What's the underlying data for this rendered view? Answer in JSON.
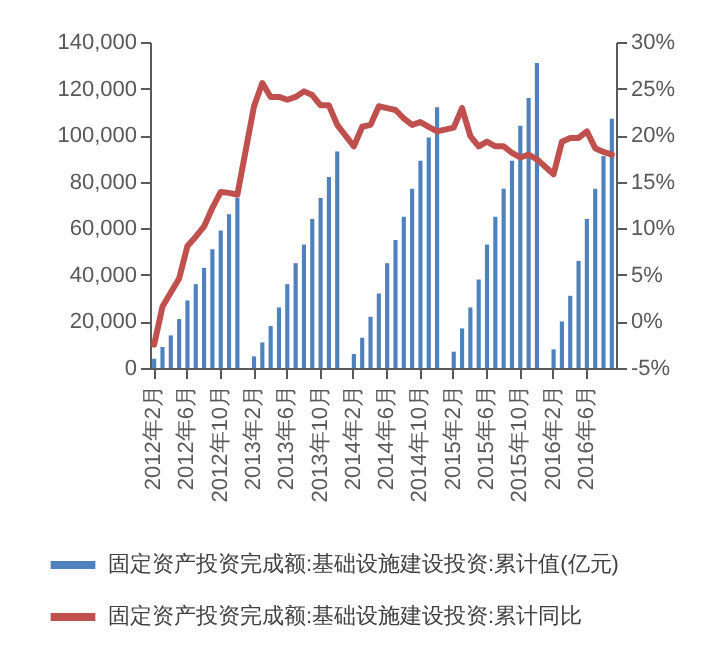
{
  "chart_data": {
    "type": "bar",
    "categories": [
      "2012年2月",
      null,
      null,
      null,
      "2012年6月",
      null,
      null,
      null,
      "2012年10月",
      null,
      null,
      null,
      "2013年2月",
      null,
      null,
      null,
      "2013年6月",
      null,
      null,
      null,
      "2013年10月",
      null,
      null,
      null,
      "2014年2月",
      null,
      null,
      null,
      "2014年6月",
      null,
      null,
      null,
      "2014年10月",
      null,
      null,
      null,
      "2015年2月",
      null,
      null,
      null,
      "2015年6月",
      null,
      null,
      null,
      "2015年10月",
      null,
      null,
      null,
      "2016年2月",
      null,
      null,
      null,
      "2016年6月",
      null,
      null,
      null
    ],
    "series": [
      {
        "name": "固定资产投资完成额:基础设施建设投资:累计值(亿元)",
        "color": "#4f81bd",
        "values": [
          4000,
          9000,
          14000,
          21000,
          29000,
          36000,
          43000,
          51000,
          59000,
          66000,
          73000,
          null,
          5000,
          11000,
          18000,
          26000,
          36000,
          45000,
          53000,
          64000,
          73000,
          82000,
          93000,
          null,
          6000,
          13000,
          22000,
          32000,
          45000,
          55000,
          65000,
          77000,
          89000,
          99000,
          112000,
          null,
          7000,
          17000,
          26000,
          38000,
          53000,
          65000,
          77000,
          89000,
          104000,
          116000,
          131000,
          null,
          8000,
          20000,
          31000,
          46000,
          64000,
          77000,
          91000,
          107000
        ]
      },
      {
        "name": "固定资产投资完成额:基础设施建设投资:累计同比",
        "type": "line",
        "axis": "y2",
        "color": "#c0504d",
        "values": [
          -2.5,
          1.6,
          3.1,
          4.6,
          8.1,
          9.1,
          10.2,
          12.2,
          13.9,
          13.8,
          13.6,
          null,
          23.1,
          25.6,
          24.1,
          24.1,
          23.8,
          24.1,
          24.7,
          24.3,
          23.2,
          23.2,
          21.1,
          null,
          18.8,
          20.9,
          21.1,
          23.1,
          22.9,
          22.7,
          21.8,
          21.1,
          21.4,
          20.9,
          20.4,
          null,
          20.8,
          22.9,
          19.9,
          18.8,
          19.3,
          18.8,
          18.8,
          18.1,
          17.6,
          17.9,
          17.4,
          null,
          15.8,
          19.3,
          19.7,
          19.7,
          20.4,
          18.6,
          18.2,
          17.9
        ]
      }
    ],
    "ylim": [
      0,
      140000
    ],
    "yticks": [
      0,
      {
        "value": 20000,
        "label": "20,000"
      },
      {
        "value": 40000,
        "label": "40,000"
      },
      {
        "value": 60000,
        "label": "60,000"
      },
      {
        "value": 80000,
        "label": "80,000"
      },
      {
        "value": 100000,
        "label": "100,000"
      },
      {
        "value": 120000,
        "label": "120,000"
      },
      {
        "value": 140000,
        "label": "140,000"
      }
    ],
    "y2lim": [
      -5,
      30
    ],
    "y2ticks": [
      {
        "value": -5,
        "label": "-5%"
      },
      {
        "value": 0,
        "label": "0%"
      },
      {
        "value": 5,
        "label": "5%"
      },
      {
        "value": 10,
        "label": "10%"
      },
      {
        "value": 15,
        "label": "15%"
      },
      {
        "value": 20,
        "label": "20%"
      },
      {
        "value": 25,
        "label": "25%"
      },
      {
        "value": 30,
        "label": "30%"
      }
    ],
    "grid": false,
    "legend": "bottom"
  }
}
